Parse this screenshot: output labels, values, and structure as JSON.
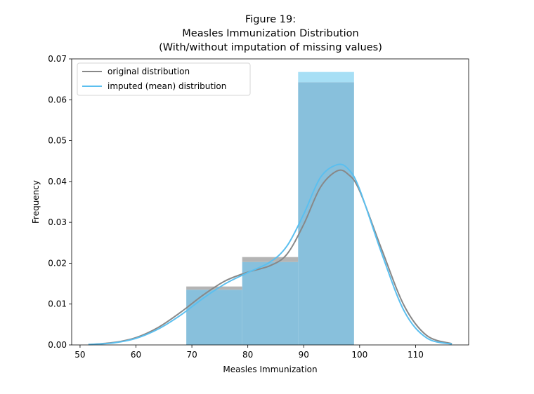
{
  "chart_data": {
    "type": "bar",
    "title_lines": [
      "Figure 19:",
      "Measles Immunization Distribution",
      "(With/without imputation of missing values)"
    ],
    "xlabel": "Measles Immunization",
    "ylabel": "Frequency",
    "xlim": [
      48.5,
      119.5
    ],
    "ylim": [
      0,
      0.07
    ],
    "xticks": [
      50,
      60,
      70,
      80,
      90,
      100,
      110
    ],
    "yticks": [
      0.0,
      0.01,
      0.02,
      0.03,
      0.04,
      0.05,
      0.06,
      0.07
    ],
    "grid": false,
    "legend_position": "top-left",
    "bins": [
      [
        69,
        79
      ],
      [
        79,
        89
      ],
      [
        89,
        99
      ]
    ],
    "histograms": [
      {
        "series": "original distribution",
        "color": "#b4b4b4",
        "values": [
          0.0143,
          0.0215,
          0.0643
        ]
      },
      {
        "series": "imputed (mean) distribution",
        "color": "#a7dff5",
        "values": [
          0.0135,
          0.0203,
          0.0668
        ]
      }
    ],
    "overlap_color": "#88c0dc",
    "series": [
      {
        "name": "original distribution",
        "color": "#888888",
        "x": [
          51.5,
          56,
          60,
          64,
          68,
          72,
          76,
          80,
          84,
          87,
          90,
          93,
          96,
          98,
          100,
          104,
          108,
          112,
          116.5
        ],
        "y": [
          0.0001,
          0.0006,
          0.0018,
          0.0043,
          0.008,
          0.0122,
          0.0157,
          0.0178,
          0.0194,
          0.0222,
          0.0295,
          0.0386,
          0.0426,
          0.0417,
          0.0377,
          0.0232,
          0.0095,
          0.0023,
          0.0003
        ]
      },
      {
        "name": "imputed (mean) distribution",
        "color": "#5bbfef",
        "x": [
          51.5,
          56,
          60,
          64,
          68,
          72,
          76,
          80,
          84,
          87,
          90,
          93,
          96,
          98,
          100,
          104,
          108,
          112,
          116.5
        ],
        "y": [
          0.0001,
          0.0005,
          0.0016,
          0.0039,
          0.0073,
          0.0114,
          0.015,
          0.0177,
          0.0203,
          0.0242,
          0.032,
          0.041,
          0.0441,
          0.043,
          0.0381,
          0.0222,
          0.0082,
          0.0017,
          0.0002
        ]
      }
    ]
  }
}
